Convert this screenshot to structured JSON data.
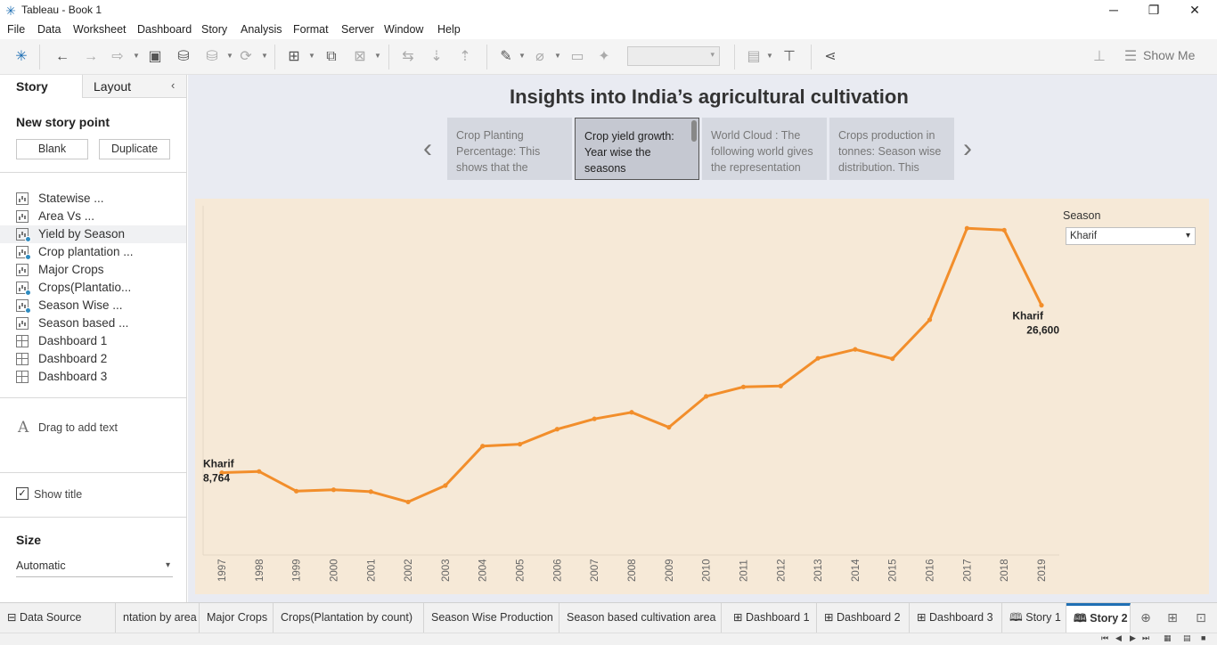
{
  "window": {
    "title": "Tableau - Book 1",
    "minimize": "─",
    "restore": "❐",
    "close": "✕"
  },
  "menu": [
    "File",
    "Data",
    "Worksheet",
    "Dashboard",
    "Story",
    "Analysis",
    "Format",
    "Server",
    "Window",
    "Help"
  ],
  "toolbar": {
    "show_me": "Show Me"
  },
  "sidebar": {
    "tab_story": "Story",
    "tab_layout": "Layout",
    "new_story_point": "New story point",
    "blank": "Blank",
    "duplicate": "Duplicate",
    "sheets": [
      {
        "label": "Statewise ...",
        "kind": "worksheet",
        "used": false
      },
      {
        "label": "Area Vs ...",
        "kind": "worksheet",
        "used": false
      },
      {
        "label": "Yield by Season",
        "kind": "worksheet",
        "used": true
      },
      {
        "label": "Crop plantation ...",
        "kind": "worksheet",
        "used": true
      },
      {
        "label": "Major Crops",
        "kind": "worksheet",
        "used": false
      },
      {
        "label": "Crops(Plantatio...",
        "kind": "worksheet",
        "used": true
      },
      {
        "label": "Season Wise ...",
        "kind": "worksheet",
        "used": true
      },
      {
        "label": "Season based ...",
        "kind": "worksheet",
        "used": false
      },
      {
        "label": "Dashboard 1",
        "kind": "dashboard",
        "used": false
      },
      {
        "label": "Dashboard 2",
        "kind": "dashboard",
        "used": false
      },
      {
        "label": "Dashboard 3",
        "kind": "dashboard",
        "used": false
      }
    ],
    "drag_text": "Drag to add text",
    "show_title": "Show title",
    "size_heading": "Size",
    "size_value": "Automatic"
  },
  "story": {
    "title": "Insights into India’s agricultural cultivation",
    "points": [
      {
        "text": "Crop Planting Percentage: This shows that the"
      },
      {
        "text": "Crop yield growth: Year wise the seasons"
      },
      {
        "text": "World Cloud : The following world gives the representation"
      },
      {
        "text": "Crops production in tonnes: Season wise distribution. This"
      }
    ]
  },
  "filter": {
    "label": "Season",
    "value": "Kharif"
  },
  "chart_data": {
    "type": "line",
    "x": [
      "1997",
      "1998",
      "1999",
      "2000",
      "2001",
      "2002",
      "2003",
      "2004",
      "2005",
      "2006",
      "2007",
      "2008",
      "2009",
      "2010",
      "2011",
      "2012",
      "2013",
      "2014",
      "2015",
      "2016",
      "2017",
      "2018",
      "2019"
    ],
    "series": [
      {
        "name": "Kharif",
        "values": [
          8764,
          8900,
          6800,
          6950,
          6750,
          5650,
          7400,
          11600,
          11800,
          13400,
          14500,
          15200,
          13600,
          16900,
          17900,
          18000,
          20950,
          21900,
          20900,
          25050,
          34800,
          34600,
          26600
        ]
      }
    ],
    "color": "#f28e2b",
    "labels": [
      {
        "series": "Kharif",
        "value": "8,764"
      },
      {
        "series": "Kharif",
        "value": "26,600"
      }
    ],
    "ylim": [
      0,
      37000
    ],
    "grid": false
  },
  "bottom_tabs": [
    {
      "label": "Data Source",
      "icon": "⊟"
    },
    {
      "label": "ntation by area",
      "icon": ""
    },
    {
      "label": "Major Crops",
      "icon": ""
    },
    {
      "label": "Crops(Plantation by count)",
      "icon": ""
    },
    {
      "label": "Season Wise Production",
      "icon": ""
    },
    {
      "label": "Season based cultivation area",
      "icon": ""
    },
    {
      "label": "Dashboard 1",
      "icon": "⊞"
    },
    {
      "label": "Dashboard 2",
      "icon": "⊞"
    },
    {
      "label": "Dashboard 3",
      "icon": "⊞"
    },
    {
      "label": "Story 1",
      "icon": "🕮"
    },
    {
      "label": "Story 2",
      "icon": "🕮"
    }
  ]
}
